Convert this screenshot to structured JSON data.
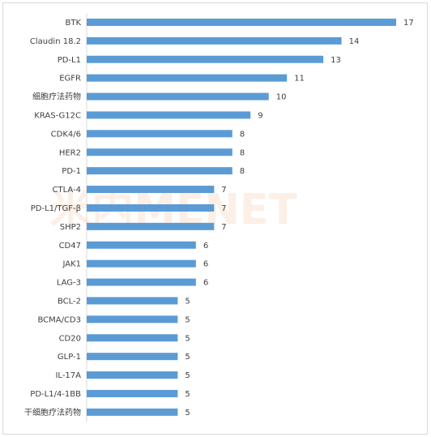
{
  "watermark": {
    "text": "米内MENET"
  },
  "chart_data": {
    "type": "bar",
    "orientation": "horizontal",
    "title": "",
    "xlabel": "",
    "ylabel": "",
    "xlim": [
      0,
      17
    ],
    "grid": false,
    "data_labels": true,
    "colors": {
      "bar": "#5b9bd5"
    },
    "categories": [
      "BTK",
      "Claudin 18.2",
      "PD-L1",
      "EGFR",
      "细胞疗法药物",
      "KRAS-G12C",
      "CDK4/6",
      "HER2",
      "PD-1",
      "CTLA-4",
      "PD-L1/TGF-β",
      "SHP2",
      "CD47",
      "JAK1",
      "LAG-3",
      "BCL-2",
      "BCMA/CD3",
      "CD20",
      "GLP-1",
      "IL-17A",
      "PD-L1/4-1BB",
      "干细胞疗法药物"
    ],
    "values": [
      17,
      14,
      13,
      11,
      10,
      9,
      8,
      8,
      8,
      7,
      7,
      7,
      6,
      6,
      6,
      5,
      5,
      5,
      5,
      5,
      5,
      5
    ]
  }
}
